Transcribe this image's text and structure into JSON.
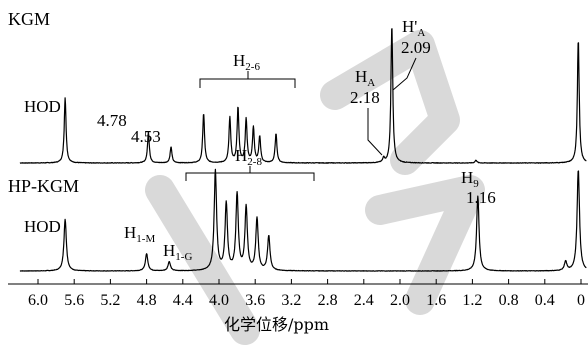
{
  "chart_data": {
    "type": "line",
    "title": "",
    "xlabel": "化学位移/ppm",
    "ylabel": "",
    "x_reversed": true,
    "xlim": [
      6.2,
      0.0
    ],
    "x_ticks": [
      "6.0",
      "5.6",
      "5.2",
      "4.8",
      "4.4",
      "4.0",
      "3.6",
      "3.2",
      "2.8",
      "2.4",
      "2.0",
      "1.6",
      "1.2",
      "0.8",
      "0.4",
      "0"
    ],
    "grid": false,
    "legend": "none",
    "series": [
      {
        "name": "KGM",
        "peaks": [
          {
            "ppm": 5.7,
            "height": 0.45,
            "label": "HOD"
          },
          {
            "ppm": 4.78,
            "height": 0.21,
            "label": "4.78"
          },
          {
            "ppm": 4.53,
            "height": 0.11,
            "label": "4.53"
          },
          {
            "ppm": 4.17,
            "height": 0.34
          },
          {
            "ppm": 3.88,
            "height": 0.31
          },
          {
            "ppm": 3.79,
            "height": 0.38
          },
          {
            "ppm": 3.7,
            "height": 0.3
          },
          {
            "ppm": 3.62,
            "height": 0.24
          },
          {
            "ppm": 3.55,
            "height": 0.18
          },
          {
            "ppm": 3.37,
            "height": 0.2
          },
          {
            "ppm": 2.18,
            "height": 0.03
          },
          {
            "ppm": 2.09,
            "height": 0.95
          },
          {
            "ppm": 1.16,
            "height": 0.02
          },
          {
            "ppm": 0.03,
            "height": 0.85
          }
        ],
        "labels": [
          {
            "text": "HOD",
            "ppm": 5.7
          },
          {
            "text": "4.78",
            "ppm": 4.78
          },
          {
            "text": "4.53",
            "ppm": 4.53
          },
          {
            "text": "H",
            "sub": "2-6",
            "range": [
              4.2,
              3.0
            ]
          },
          {
            "text": "H",
            "sub": "A",
            "value": "2.18",
            "ppm": 2.18
          },
          {
            "text": "H'",
            "sub": "A",
            "value": "2.09",
            "ppm": 2.09
          }
        ]
      },
      {
        "name": "HP-KGM",
        "peaks": [
          {
            "ppm": 5.7,
            "height": 0.45,
            "label": "HOD"
          },
          {
            "ppm": 4.8,
            "height": 0.15,
            "label": "H1-M"
          },
          {
            "ppm": 4.55,
            "height": 0.08,
            "label": "H1-G"
          },
          {
            "ppm": 4.04,
            "height": 0.87
          },
          {
            "ppm": 3.92,
            "height": 0.58
          },
          {
            "ppm": 3.8,
            "height": 0.66
          },
          {
            "ppm": 3.7,
            "height": 0.55
          },
          {
            "ppm": 3.58,
            "height": 0.45
          },
          {
            "ppm": 3.45,
            "height": 0.3
          },
          {
            "ppm": 1.14,
            "height": 0.65
          },
          {
            "ppm": 0.17,
            "height": 0.08
          },
          {
            "ppm": 0.03,
            "height": 0.88
          }
        ],
        "labels": [
          {
            "text": "HOD",
            "ppm": 5.7
          },
          {
            "text": "H",
            "sub": "1-M",
            "ppm": 4.8
          },
          {
            "text": "H",
            "sub": "1-G",
            "ppm": 4.55
          },
          {
            "text": "H",
            "sub": "2-8",
            "range": [
              4.3,
              2.9
            ]
          },
          {
            "text": "H",
            "sub": "9",
            "value": "1.16",
            "ppm": 1.16
          }
        ]
      }
    ]
  }
}
